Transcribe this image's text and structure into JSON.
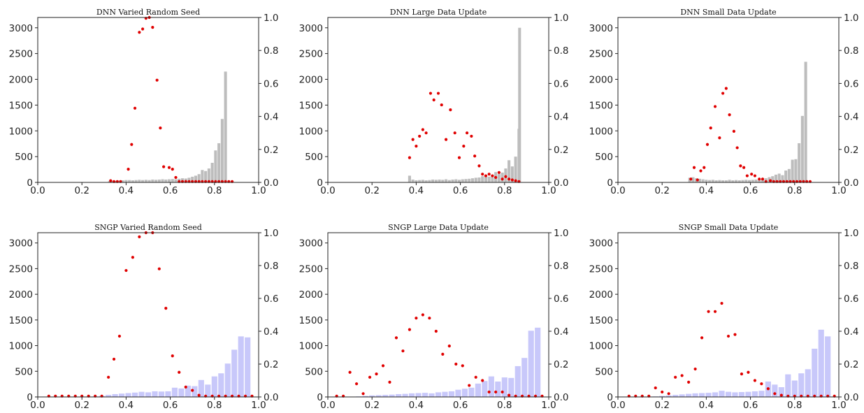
{
  "colors": {
    "dnn_bar": "#bdbdbd",
    "sngp_bar": "#c8c8fa",
    "point": "#e00000"
  },
  "chart_data": [
    {
      "type": "bar",
      "title": "DNN Varied Random Seed",
      "bar_color": "#bdbdbd",
      "xlim": [
        0.0,
        1.0
      ],
      "ylim_left": [
        0,
        3200
      ],
      "ylim_right": [
        0,
        1.0
      ],
      "xticks": [
        "0.0",
        "0.2",
        "0.4",
        "0.6",
        "0.8",
        "1.0"
      ],
      "yticks_left": [
        "0",
        "500",
        "1000",
        "1500",
        "2000",
        "2500",
        "3000"
      ],
      "yticks_right": [
        "0.0",
        "0.2",
        "0.4",
        "0.6",
        "0.8",
        "1.0"
      ],
      "bars": {
        "x": [
          0.325,
          0.34,
          0.355,
          0.37,
          0.385,
          0.4,
          0.415,
          0.43,
          0.445,
          0.46,
          0.475,
          0.49,
          0.505,
          0.52,
          0.535,
          0.55,
          0.565,
          0.58,
          0.595,
          0.61,
          0.625,
          0.64,
          0.655,
          0.67,
          0.685,
          0.7,
          0.715,
          0.73,
          0.745,
          0.76,
          0.775,
          0.79,
          0.805,
          0.82,
          0.835,
          0.85,
          0.865
        ],
        "values": [
          25,
          30,
          30,
          35,
          40,
          45,
          45,
          40,
          45,
          50,
          45,
          50,
          45,
          55,
          50,
          55,
          60,
          55,
          60,
          65,
          60,
          70,
          80,
          75,
          90,
          110,
          130,
          160,
          240,
          220,
          270,
          380,
          620,
          760,
          1230,
          2150,
          0
        ]
      },
      "points": {
        "x": [
          0.33,
          0.345,
          0.36,
          0.375,
          0.41,
          0.425,
          0.44,
          0.46,
          0.475,
          0.49,
          0.505,
          0.52,
          0.54,
          0.555,
          0.57,
          0.595,
          0.61,
          0.625,
          0.64,
          0.655,
          0.67,
          0.685,
          0.7,
          0.715,
          0.73,
          0.745,
          0.76,
          0.775,
          0.79,
          0.805,
          0.82,
          0.835,
          0.85,
          0.865,
          0.88
        ],
        "values": [
          0.01,
          0.005,
          0.005,
          0.005,
          0.08,
          0.23,
          0.45,
          0.91,
          0.93,
          0.995,
          1.0,
          0.94,
          0.62,
          0.33,
          0.095,
          0.09,
          0.08,
          0.03,
          0.005,
          0.005,
          0.005,
          0.005,
          0.005,
          0.005,
          0.005,
          0.005,
          0.005,
          0.005,
          0.005,
          0.005,
          0.005,
          0.005,
          0.005,
          0.005,
          0.005
        ]
      }
    },
    {
      "type": "bar",
      "title": "DNN Large Data Update",
      "bar_color": "#bdbdbd",
      "xlim": [
        0.0,
        1.0
      ],
      "ylim_left": [
        0,
        3200
      ],
      "ylim_right": [
        0,
        1.0
      ],
      "xticks": [
        "0.0",
        "0.2",
        "0.4",
        "0.6",
        "0.8",
        "1.0"
      ],
      "yticks_left": [
        "0",
        "500",
        "1000",
        "1500",
        "2000",
        "2500",
        "3000"
      ],
      "yticks_right": [
        "0.0",
        "0.2",
        "0.4",
        "0.6",
        "0.8",
        "1.0"
      ],
      "bars": {
        "x": [
          0.37,
          0.385,
          0.4,
          0.415,
          0.43,
          0.445,
          0.46,
          0.475,
          0.49,
          0.505,
          0.52,
          0.535,
          0.55,
          0.565,
          0.58,
          0.595,
          0.61,
          0.625,
          0.64,
          0.655,
          0.67,
          0.685,
          0.7,
          0.715,
          0.73,
          0.745,
          0.76,
          0.775,
          0.79,
          0.805,
          0.82,
          0.835,
          0.85,
          0.865
        ],
        "values": [
          130,
          55,
          40,
          45,
          50,
          40,
          45,
          55,
          50,
          55,
          50,
          60,
          45,
          55,
          60,
          50,
          60,
          65,
          70,
          80,
          90,
          95,
          120,
          140,
          110,
          130,
          200,
          160,
          190,
          270,
          430,
          310,
          500,
          1040
        ]
      },
      "extra_bar": {
        "x": 0.868,
        "value": 3000
      },
      "points": {
        "x": [
          0.37,
          0.385,
          0.4,
          0.415,
          0.43,
          0.445,
          0.465,
          0.48,
          0.5,
          0.515,
          0.535,
          0.555,
          0.575,
          0.595,
          0.615,
          0.63,
          0.65,
          0.665,
          0.685,
          0.7,
          0.715,
          0.73,
          0.745,
          0.76,
          0.775,
          0.79,
          0.805,
          0.82,
          0.835,
          0.85,
          0.865
        ],
        "values": [
          0.15,
          0.26,
          0.22,
          0.28,
          0.32,
          0.3,
          0.54,
          0.5,
          0.54,
          0.47,
          0.26,
          0.44,
          0.3,
          0.15,
          0.22,
          0.3,
          0.28,
          0.16,
          0.1,
          0.05,
          0.04,
          0.05,
          0.04,
          0.03,
          0.06,
          0.02,
          0.035,
          0.02,
          0.015,
          0.01,
          0.005
        ]
      }
    },
    {
      "type": "bar",
      "title": "DNN Small Data Update",
      "bar_color": "#bdbdbd",
      "xlim": [
        0.0,
        1.0
      ],
      "ylim_left": [
        0,
        3200
      ],
      "ylim_right": [
        0,
        1.0
      ],
      "xticks": [
        "0.0",
        "0.2",
        "0.4",
        "0.6",
        "0.8",
        "1.0"
      ],
      "yticks_left": [
        "0",
        "500",
        "1000",
        "1500",
        "2000",
        "2500",
        "3000"
      ],
      "yticks_right": [
        "0.0",
        "0.2",
        "0.4",
        "0.6",
        "0.8",
        "1.0"
      ],
      "bars": {
        "x": [
          0.325,
          0.34,
          0.355,
          0.37,
          0.385,
          0.4,
          0.415,
          0.43,
          0.445,
          0.46,
          0.475,
          0.49,
          0.505,
          0.52,
          0.535,
          0.55,
          0.565,
          0.58,
          0.595,
          0.61,
          0.625,
          0.64,
          0.655,
          0.67,
          0.685,
          0.7,
          0.715,
          0.73,
          0.745,
          0.76,
          0.775,
          0.79,
          0.805,
          0.82,
          0.835,
          0.85,
          0.865
        ],
        "values": [
          90,
          100,
          80,
          70,
          60,
          50,
          45,
          50,
          40,
          45,
          40,
          40,
          50,
          40,
          45,
          40,
          45,
          50,
          45,
          50,
          55,
          60,
          70,
          80,
          100,
          120,
          150,
          170,
          140,
          230,
          260,
          440,
          450,
          760,
          1290,
          2340,
          0
        ]
      },
      "points": {
        "x": [
          0.33,
          0.345,
          0.36,
          0.375,
          0.39,
          0.405,
          0.42,
          0.44,
          0.46,
          0.475,
          0.49,
          0.505,
          0.525,
          0.54,
          0.555,
          0.57,
          0.585,
          0.605,
          0.62,
          0.64,
          0.655,
          0.67,
          0.69,
          0.705,
          0.72,
          0.735,
          0.75,
          0.765,
          0.78,
          0.795,
          0.81,
          0.825,
          0.84,
          0.855,
          0.87
        ],
        "values": [
          0.02,
          0.09,
          0.015,
          0.07,
          0.09,
          0.23,
          0.33,
          0.46,
          0.27,
          0.54,
          0.57,
          0.41,
          0.31,
          0.21,
          0.1,
          0.09,
          0.04,
          0.05,
          0.04,
          0.02,
          0.02,
          0.005,
          0.01,
          0.005,
          0.005,
          0.005,
          0.005,
          0.005,
          0.005,
          0.005,
          0.005,
          0.005,
          0.005,
          0.005,
          0.005
        ]
      }
    },
    {
      "type": "bar",
      "title": "SNGP Varied Random Seed",
      "bar_color": "#c8c8fa",
      "xlim": [
        0.0,
        1.0
      ],
      "ylim_left": [
        0,
        3200
      ],
      "ylim_right": [
        0,
        1.0
      ],
      "xticks": [
        "0.0",
        "0.2",
        "0.4",
        "0.6",
        "0.8",
        "1.0"
      ],
      "yticks_left": [
        "0",
        "500",
        "1000",
        "1500",
        "2000",
        "2500",
        "3000"
      ],
      "yticks_right": [
        "0.0",
        "0.2",
        "0.4",
        "0.6",
        "0.8",
        "1.0"
      ],
      "bars": {
        "x": [
          0.05,
          0.08,
          0.11,
          0.14,
          0.17,
          0.2,
          0.23,
          0.26,
          0.29,
          0.32,
          0.35,
          0.38,
          0.41,
          0.44,
          0.47,
          0.5,
          0.53,
          0.56,
          0.59,
          0.62,
          0.65,
          0.68,
          0.71,
          0.74,
          0.77,
          0.8,
          0.83,
          0.86,
          0.89,
          0.92,
          0.95,
          0.98
        ],
        "values": [
          0,
          0,
          0,
          0,
          0,
          0,
          0,
          10,
          20,
          40,
          55,
          65,
          75,
          85,
          100,
          90,
          110,
          105,
          110,
          180,
          165,
          220,
          210,
          330,
          240,
          400,
          460,
          650,
          920,
          1180,
          1160,
          0
        ]
      },
      "points": {
        "x": [
          0.05,
          0.08,
          0.11,
          0.14,
          0.17,
          0.2,
          0.23,
          0.26,
          0.29,
          0.32,
          0.345,
          0.37,
          0.4,
          0.43,
          0.46,
          0.49,
          0.52,
          0.55,
          0.58,
          0.61,
          0.64,
          0.67,
          0.7,
          0.73,
          0.76,
          0.79,
          0.82,
          0.85,
          0.88,
          0.91,
          0.94,
          0.97
        ],
        "values": [
          0.005,
          0.005,
          0.005,
          0.005,
          0.005,
          0.005,
          0.005,
          0.005,
          0.005,
          0.12,
          0.23,
          0.37,
          0.77,
          0.85,
          0.975,
          1.0,
          1.0,
          0.78,
          0.54,
          0.25,
          0.15,
          0.06,
          0.04,
          0.01,
          0.005,
          0.005,
          0.005,
          0.005,
          0.005,
          0.005,
          0.005,
          0.005
        ]
      }
    },
    {
      "type": "bar",
      "title": "SNGP Large Data Update",
      "bar_color": "#c8c8fa",
      "xlim": [
        0.0,
        1.0
      ],
      "ylim_left": [
        0,
        3200
      ],
      "ylim_right": [
        0,
        1.0
      ],
      "xticks": [
        "0.0",
        "0.2",
        "0.4",
        "0.6",
        "0.8",
        "1.0"
      ],
      "yticks_left": [
        "0",
        "500",
        "1000",
        "1500",
        "2000",
        "2500",
        "3000"
      ],
      "yticks_right": [
        "0.0",
        "0.2",
        "0.4",
        "0.6",
        "0.8",
        "1.0"
      ],
      "bars": {
        "x": [
          0.05,
          0.08,
          0.11,
          0.14,
          0.17,
          0.2,
          0.23,
          0.26,
          0.29,
          0.32,
          0.35,
          0.38,
          0.41,
          0.44,
          0.47,
          0.5,
          0.53,
          0.56,
          0.59,
          0.62,
          0.65,
          0.68,
          0.71,
          0.74,
          0.77,
          0.8,
          0.83,
          0.86,
          0.89,
          0.92,
          0.95,
          0.98
        ],
        "values": [
          0,
          0,
          0,
          10,
          20,
          30,
          35,
          40,
          45,
          55,
          60,
          70,
          75,
          80,
          70,
          90,
          100,
          110,
          140,
          160,
          180,
          260,
          310,
          400,
          300,
          380,
          370,
          600,
          760,
          1290,
          1350,
          0
        ]
      },
      "points": {
        "x": [
          0.04,
          0.07,
          0.1,
          0.13,
          0.16,
          0.19,
          0.22,
          0.25,
          0.28,
          0.31,
          0.34,
          0.37,
          0.4,
          0.43,
          0.46,
          0.49,
          0.52,
          0.55,
          0.58,
          0.61,
          0.64,
          0.67,
          0.7,
          0.73,
          0.76,
          0.79,
          0.82,
          0.85,
          0.88,
          0.91,
          0.94,
          0.97
        ],
        "values": [
          0.005,
          0.005,
          0.15,
          0.08,
          0.02,
          0.12,
          0.14,
          0.19,
          0.09,
          0.36,
          0.28,
          0.41,
          0.48,
          0.5,
          0.48,
          0.4,
          0.26,
          0.31,
          0.2,
          0.19,
          0.07,
          0.12,
          0.1,
          0.03,
          0.03,
          0.03,
          0.01,
          0.005,
          0.005,
          0.005,
          0.005,
          0.005
        ]
      }
    },
    {
      "type": "bar",
      "title": "SNGP Small Data Update",
      "bar_color": "#c8c8fa",
      "xlim": [
        0.0,
        1.0
      ],
      "ylim_left": [
        0,
        3200
      ],
      "ylim_right": [
        0,
        1.0
      ],
      "xticks": [
        "0.0",
        "0.2",
        "0.4",
        "0.6",
        "0.8",
        "1.0"
      ],
      "yticks_left": [
        "0",
        "500",
        "1000",
        "1500",
        "2000",
        "2500",
        "3000"
      ],
      "yticks_right": [
        "0.0",
        "0.2",
        "0.4",
        "0.6",
        "0.8",
        "1.0"
      ],
      "bars": {
        "x": [
          0.05,
          0.08,
          0.11,
          0.14,
          0.17,
          0.2,
          0.23,
          0.26,
          0.29,
          0.32,
          0.35,
          0.38,
          0.41,
          0.44,
          0.47,
          0.5,
          0.53,
          0.56,
          0.59,
          0.62,
          0.65,
          0.68,
          0.71,
          0.74,
          0.77,
          0.8,
          0.83,
          0.86,
          0.89,
          0.92,
          0.95,
          0.98
        ],
        "values": [
          0,
          0,
          0,
          0,
          10,
          20,
          30,
          40,
          50,
          60,
          70,
          75,
          80,
          90,
          120,
          100,
          90,
          95,
          100,
          110,
          120,
          300,
          240,
          190,
          440,
          320,
          460,
          540,
          940,
          1310,
          1180,
          0
        ]
      },
      "points": {
        "x": [
          0.05,
          0.08,
          0.11,
          0.14,
          0.17,
          0.2,
          0.23,
          0.26,
          0.29,
          0.32,
          0.35,
          0.38,
          0.41,
          0.44,
          0.47,
          0.5,
          0.53,
          0.56,
          0.59,
          0.62,
          0.65,
          0.68,
          0.71,
          0.74,
          0.77,
          0.8,
          0.83,
          0.86,
          0.89,
          0.92,
          0.95,
          0.98
        ],
        "values": [
          0.005,
          0.005,
          0.005,
          0.005,
          0.055,
          0.03,
          0.02,
          0.12,
          0.13,
          0.09,
          0.17,
          0.36,
          0.52,
          0.52,
          0.57,
          0.37,
          0.38,
          0.14,
          0.15,
          0.1,
          0.08,
          0.05,
          0.02,
          0.01,
          0.005,
          0.005,
          0.005,
          0.005,
          0.005,
          0.005,
          0.005,
          0.005
        ]
      }
    }
  ]
}
